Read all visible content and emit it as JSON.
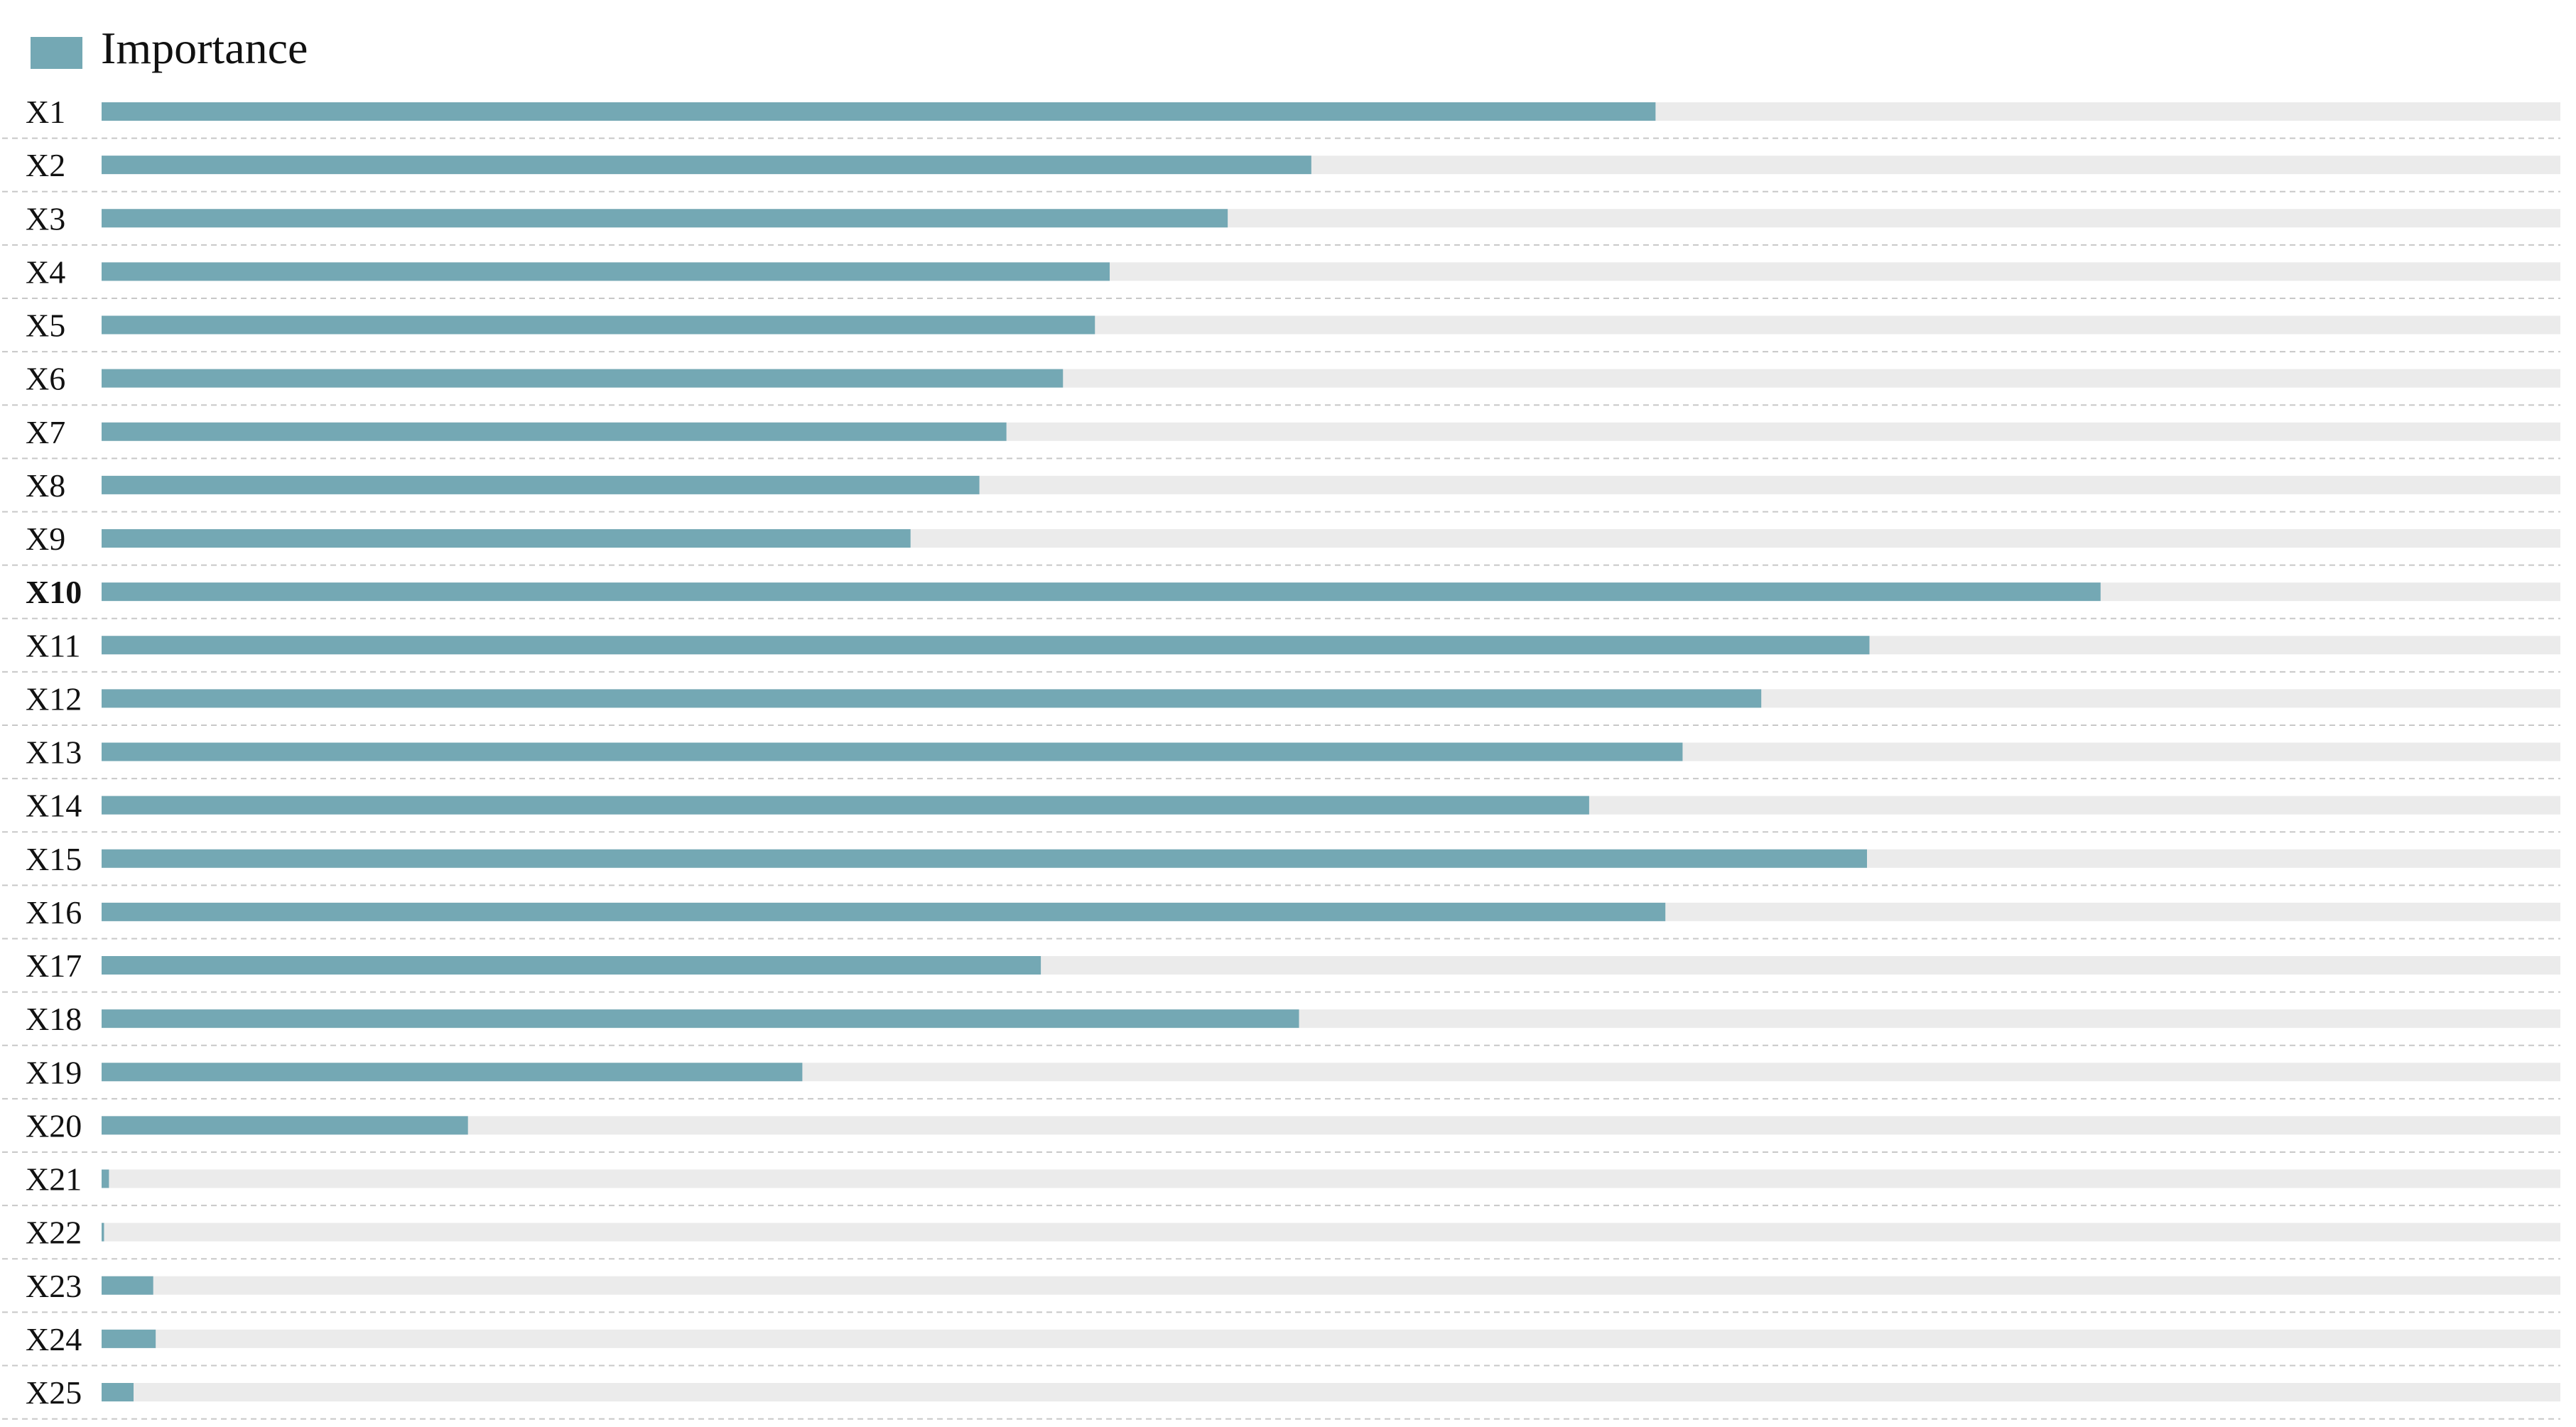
{
  "chart_data": {
    "type": "bar",
    "orientation": "horizontal",
    "legend": {
      "placement": "top-left",
      "entries": [
        {
          "label": "Importance",
          "color": "#74a8b4"
        }
      ]
    },
    "categories": [
      "X1",
      "X2",
      "X3",
      "X4",
      "X5",
      "X6",
      "X7",
      "X8",
      "X9",
      "X10",
      "X11",
      "X12",
      "X13",
      "X14",
      "X15",
      "X16",
      "X17",
      "X18",
      "X19",
      "X20",
      "X21",
      "X22",
      "X23",
      "X24",
      "X25"
    ],
    "bold_categories": [
      "X10"
    ],
    "series": [
      {
        "name": "Importance",
        "color": "#74a8b4",
        "values": [
          0.632,
          0.492,
          0.458,
          0.41,
          0.404,
          0.391,
          0.368,
          0.357,
          0.329,
          0.813,
          0.719,
          0.675,
          0.643,
          0.605,
          0.718,
          0.636,
          0.382,
          0.487,
          0.285,
          0.149,
          0.003,
          0.001,
          0.021,
          0.022,
          0.013
        ]
      }
    ],
    "xlim": [
      0,
      1
    ],
    "track_color": "#ebebeb",
    "gridlines": "horizontal dashed separators",
    "gridline_color": "#c8c8c8",
    "axes_visible": false
  }
}
